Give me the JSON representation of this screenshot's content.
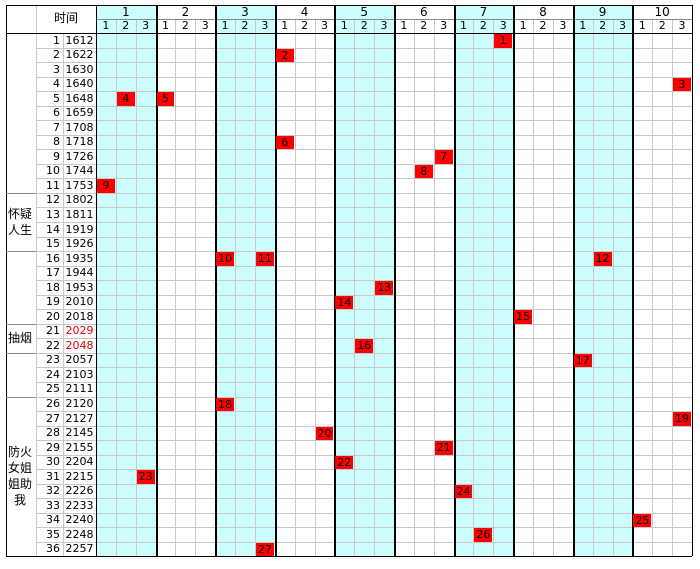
{
  "header": {
    "time_label": "时间",
    "groups": [
      "1",
      "2",
      "3",
      "4",
      "5",
      "6",
      "7",
      "8",
      "9",
      "10"
    ],
    "subcols": [
      "1",
      "2",
      "3"
    ]
  },
  "row_groups": [
    {
      "from": 1,
      "to": 11,
      "label": ""
    },
    {
      "from": 12,
      "to": 15,
      "label": "怀疑人生"
    },
    {
      "from": 16,
      "to": 20,
      "label": ""
    },
    {
      "from": 21,
      "to": 22,
      "label": "抽烟"
    },
    {
      "from": 23,
      "to": 25,
      "label": ""
    },
    {
      "from": 26,
      "to": 36,
      "label": "防火女姐姐助我"
    }
  ],
  "rows": [
    {
      "n": "1",
      "time": "1612"
    },
    {
      "n": "2",
      "time": "1622"
    },
    {
      "n": "3",
      "time": "1630"
    },
    {
      "n": "4",
      "time": "1640"
    },
    {
      "n": "5",
      "time": "1648"
    },
    {
      "n": "6",
      "time": "1659"
    },
    {
      "n": "7",
      "time": "1708"
    },
    {
      "n": "8",
      "time": "1718"
    },
    {
      "n": "9",
      "time": "1726"
    },
    {
      "n": "10",
      "time": "1744"
    },
    {
      "n": "11",
      "time": "1753"
    },
    {
      "n": "12",
      "time": "1802"
    },
    {
      "n": "13",
      "time": "1811"
    },
    {
      "n": "14",
      "time": "1919"
    },
    {
      "n": "15",
      "time": "1926"
    },
    {
      "n": "16",
      "time": "1935"
    },
    {
      "n": "17",
      "time": "1944"
    },
    {
      "n": "18",
      "time": "1953"
    },
    {
      "n": "19",
      "time": "2010"
    },
    {
      "n": "20",
      "time": "2018"
    },
    {
      "n": "21",
      "time": "2029",
      "red": true
    },
    {
      "n": "22",
      "time": "2048",
      "red": true
    },
    {
      "n": "23",
      "time": "2057"
    },
    {
      "n": "24",
      "time": "2103"
    },
    {
      "n": "25",
      "time": "2111"
    },
    {
      "n": "26",
      "time": "2120"
    },
    {
      "n": "27",
      "time": "2127"
    },
    {
      "n": "28",
      "time": "2145"
    },
    {
      "n": "29",
      "time": "2155"
    },
    {
      "n": "30",
      "time": "2204"
    },
    {
      "n": "31",
      "time": "2215"
    },
    {
      "n": "32",
      "time": "2226"
    },
    {
      "n": "33",
      "time": "2233"
    },
    {
      "n": "34",
      "time": "2240"
    },
    {
      "n": "35",
      "time": "2248"
    },
    {
      "n": "36",
      "time": "2257"
    }
  ],
  "marks": [
    {
      "row": 1,
      "group": 7,
      "sub": 3,
      "label": "1"
    },
    {
      "row": 2,
      "group": 4,
      "sub": 1,
      "label": "2"
    },
    {
      "row": 4,
      "group": 10,
      "sub": 3,
      "label": "3"
    },
    {
      "row": 5,
      "group": 1,
      "sub": 2,
      "label": "4"
    },
    {
      "row": 5,
      "group": 2,
      "sub": 1,
      "label": "5"
    },
    {
      "row": 8,
      "group": 4,
      "sub": 1,
      "label": "6"
    },
    {
      "row": 9,
      "group": 6,
      "sub": 3,
      "label": "7"
    },
    {
      "row": 10,
      "group": 6,
      "sub": 2,
      "label": "8"
    },
    {
      "row": 11,
      "group": 1,
      "sub": 1,
      "label": "9"
    },
    {
      "row": 16,
      "group": 3,
      "sub": 1,
      "label": "10"
    },
    {
      "row": 16,
      "group": 3,
      "sub": 3,
      "label": "11"
    },
    {
      "row": 16,
      "group": 9,
      "sub": 2,
      "label": "12"
    },
    {
      "row": 18,
      "group": 5,
      "sub": 3,
      "label": "13"
    },
    {
      "row": 19,
      "group": 5,
      "sub": 1,
      "label": "14"
    },
    {
      "row": 20,
      "group": 8,
      "sub": 1,
      "label": "15"
    },
    {
      "row": 22,
      "group": 5,
      "sub": 2,
      "label": "16"
    },
    {
      "row": 23,
      "group": 9,
      "sub": 1,
      "label": "17"
    },
    {
      "row": 26,
      "group": 3,
      "sub": 1,
      "label": "18"
    },
    {
      "row": 27,
      "group": 10,
      "sub": 3,
      "label": "19"
    },
    {
      "row": 28,
      "group": 4,
      "sub": 3,
      "label": "20"
    },
    {
      "row": 29,
      "group": 6,
      "sub": 3,
      "label": "21"
    },
    {
      "row": 30,
      "group": 5,
      "sub": 1,
      "label": "22"
    },
    {
      "row": 31,
      "group": 1,
      "sub": 3,
      "label": "23"
    },
    {
      "row": 32,
      "group": 7,
      "sub": 1,
      "label": "24"
    },
    {
      "row": 34,
      "group": 10,
      "sub": 1,
      "label": "25"
    },
    {
      "row": 35,
      "group": 7,
      "sub": 2,
      "label": "26"
    },
    {
      "row": 36,
      "group": 3,
      "sub": 3,
      "label": "27"
    }
  ],
  "colors": {
    "cyan_fill": "#ccfefe",
    "mark_fill": "#ff0000",
    "grid_line": "#c8c8c8",
    "red_text": "#e00000"
  }
}
